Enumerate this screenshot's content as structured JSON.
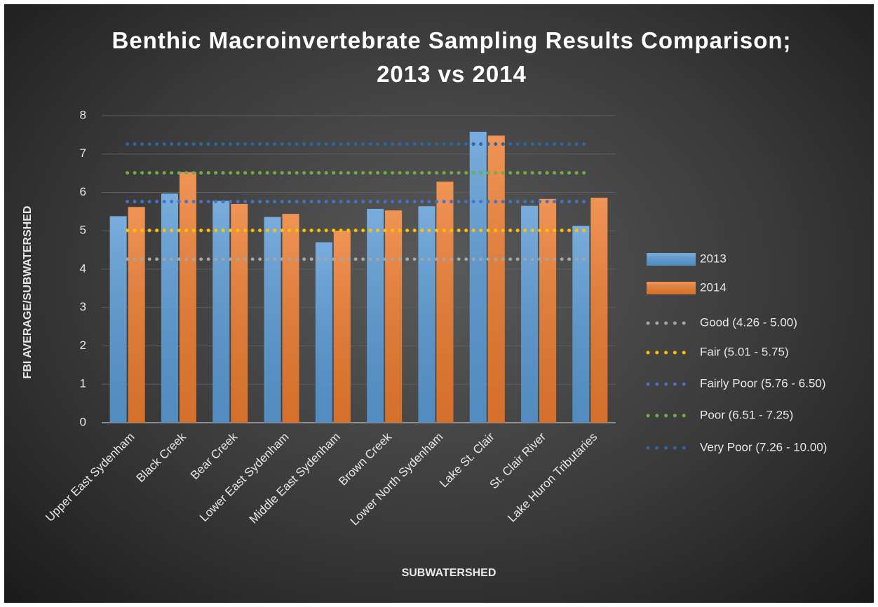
{
  "chart_data": {
    "type": "bar",
    "title": "Benthic Macroinvertebrate Sampling Results Comparison; 2013 vs 2014",
    "y_label": "FBI AVERAGE/SUBWATERSHED",
    "x_label": "SUBWATERSHED",
    "categories": [
      "Upper East Sydenham",
      "Black Creek",
      "Bear Creek",
      "Lower East Sydenham",
      "Middle East Sydenham",
      "Brown Creek",
      "Lower North Sydenham",
      "Lake St. Clair",
      "St. Clair River",
      "Lake Huron Tributaries"
    ],
    "series": [
      {
        "name": "2013",
        "type": "bar",
        "color": "#5b9bd5",
        "values": [
          5.38,
          5.97,
          5.78,
          5.36,
          4.7,
          5.57,
          5.64,
          7.58,
          5.65,
          5.13
        ]
      },
      {
        "name": "2014",
        "type": "bar",
        "color": "#ed7d31",
        "values": [
          5.62,
          6.53,
          5.7,
          5.44,
          5.0,
          5.53,
          6.28,
          7.48,
          5.83,
          5.86
        ]
      },
      {
        "name": "Good (4.26 - 5.00)",
        "type": "line",
        "color": "#a5a5a5",
        "values": [
          4.26,
          4.26,
          4.26,
          4.26,
          4.26,
          4.26,
          4.26,
          4.26,
          4.26,
          4.26
        ]
      },
      {
        "name": "Fair (5.01 - 5.75)",
        "type": "line",
        "color": "#ffc000",
        "values": [
          5.01,
          5.01,
          5.01,
          5.01,
          5.01,
          5.01,
          5.01,
          5.01,
          5.01,
          5.01
        ]
      },
      {
        "name": "Fairly Poor (5.76 - 6.50)",
        "type": "line",
        "color": "#4472c4",
        "values": [
          5.76,
          5.76,
          5.76,
          5.76,
          5.76,
          5.76,
          5.76,
          5.76,
          5.76,
          5.76
        ]
      },
      {
        "name": "Poor (6.51 - 7.25)",
        "type": "line",
        "color": "#70ad47",
        "values": [
          6.51,
          6.51,
          6.51,
          6.51,
          6.51,
          6.51,
          6.51,
          6.51,
          6.51,
          6.51
        ]
      },
      {
        "name": "Very Poor (7.26 - 10.00)",
        "type": "line",
        "color": "#2e64a8",
        "values": [
          7.26,
          7.26,
          7.26,
          7.26,
          7.26,
          7.26,
          7.26,
          7.26,
          7.26,
          7.26
        ]
      }
    ],
    "ylim": [
      0,
      8
    ],
    "yticks": [
      0,
      1,
      2,
      3,
      4,
      5,
      6,
      7,
      8
    ],
    "grid": true,
    "legend": "right"
  }
}
